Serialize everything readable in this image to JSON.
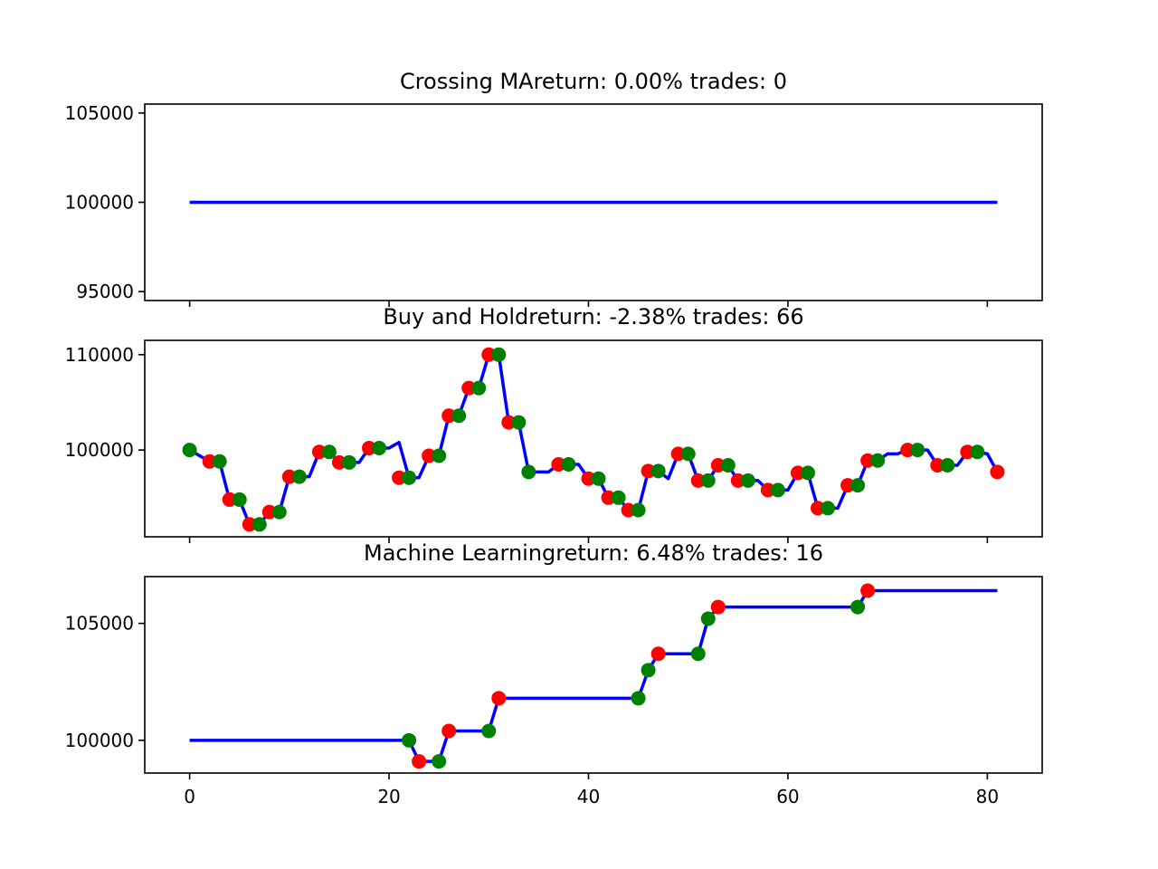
{
  "chart_data": [
    {
      "type": "line",
      "title": "Crossing MAreturn: 0.00% trades: 0",
      "ylim": [
        94500,
        105500
      ],
      "yticks": [
        95000,
        100000,
        105000
      ],
      "ytick_labels": [
        "95000",
        "100000",
        "105000"
      ],
      "xlim": [
        -4.5,
        85.5
      ],
      "x_tick_labels_shown": false,
      "series": [
        {
          "line_color": "#0000ff",
          "x": [
            0,
            81
          ],
          "y": [
            100000,
            100000
          ]
        }
      ],
      "markers": []
    },
    {
      "type": "line",
      "title": "Buy and Holdreturn: -2.38% trades: 66",
      "ylim": [
        90900,
        111500
      ],
      "yticks": [
        100000,
        110000
      ],
      "ytick_labels": [
        "100000",
        "110000"
      ],
      "xlim": [
        -4.5,
        85.5
      ],
      "x_tick_labels_shown": false,
      "series": [
        {
          "line_color": "#0000ff",
          "x": [
            0,
            2,
            3,
            4,
            5,
            6,
            7,
            8,
            9,
            10,
            11,
            12,
            13,
            14,
            15,
            16,
            17,
            18,
            19,
            20,
            21,
            22,
            23,
            24,
            25,
            26,
            27,
            28,
            29,
            30,
            31,
            32,
            33,
            34,
            35,
            36,
            37,
            38,
            39,
            40,
            41,
            42,
            43,
            44,
            45,
            46,
            47,
            48,
            49,
            50,
            51,
            52,
            53,
            54,
            55,
            56,
            57,
            58,
            59,
            60,
            61,
            62,
            63,
            64,
            65,
            66,
            67,
            68,
            69,
            70,
            71,
            72,
            73,
            74,
            75,
            76,
            77,
            78,
            79,
            80,
            81
          ],
          "y": [
            100000,
            98800,
            98800,
            94800,
            94800,
            92200,
            92200,
            93500,
            93500,
            97200,
            97200,
            97200,
            99800,
            99800,
            98700,
            98700,
            98700,
            100200,
            100200,
            100200,
            100800,
            97100,
            97100,
            99400,
            99400,
            103600,
            103600,
            106500,
            106500,
            110000,
            110000,
            102900,
            102900,
            97700,
            97700,
            97700,
            98500,
            98500,
            98500,
            97000,
            97000,
            95000,
            95000,
            93700,
            93700,
            97800,
            97800,
            97000,
            99600,
            99600,
            96800,
            96800,
            98400,
            98400,
            96800,
            96800,
            96800,
            95800,
            95800,
            95800,
            97600,
            97600,
            93900,
            93900,
            93900,
            96300,
            96300,
            98900,
            98900,
            99600,
            99600,
            100000,
            100000,
            100000,
            98400,
            98400,
            98400,
            99800,
            99800,
            99600,
            97700
          ]
        }
      ],
      "markers": [
        {
          "color": "#ff0000",
          "x": [
            2,
            4,
            6,
            8,
            10,
            13,
            15,
            18,
            21,
            24,
            26,
            28,
            30,
            32,
            37,
            40,
            42,
            44,
            46,
            49,
            51,
            53,
            55,
            58,
            61,
            63,
            66,
            68,
            72,
            75,
            78,
            81
          ],
          "y": [
            98800,
            94800,
            92200,
            93500,
            97200,
            99800,
            98700,
            100200,
            97100,
            99400,
            103600,
            106500,
            110000,
            102900,
            98500,
            97000,
            95000,
            93700,
            97800,
            99600,
            96800,
            98400,
            96800,
            95800,
            97600,
            93900,
            96300,
            98900,
            100000,
            98400,
            99800,
            97700
          ]
        },
        {
          "color": "#008000",
          "x": [
            0,
            3,
            5,
            7,
            9,
            11,
            14,
            16,
            19,
            22,
            25,
            27,
            29,
            31,
            33,
            34,
            38,
            41,
            43,
            45,
            47,
            50,
            52,
            54,
            56,
            59,
            62,
            64,
            67,
            69,
            73,
            76,
            79
          ],
          "y": [
            100000,
            98800,
            94800,
            92200,
            93500,
            97200,
            99800,
            98700,
            100200,
            97100,
            99400,
            103600,
            106500,
            110000,
            102900,
            97700,
            98500,
            97000,
            95000,
            93700,
            97800,
            99600,
            96800,
            98400,
            96800,
            95800,
            97600,
            93900,
            96300,
            98900,
            100000,
            98400,
            99800
          ]
        }
      ]
    },
    {
      "type": "line",
      "title": "Machine Learningreturn: 6.48% trades: 16",
      "ylim": [
        98600,
        107000
      ],
      "yticks": [
        100000,
        105000
      ],
      "ytick_labels": [
        "100000",
        "105000"
      ],
      "xlim": [
        -4.5,
        85.5
      ],
      "xticks": [
        0,
        20,
        40,
        60,
        80
      ],
      "xtick_labels": [
        "0",
        "20",
        "40",
        "60",
        "80"
      ],
      "x_tick_labels_shown": true,
      "series": [
        {
          "line_color": "#0000ff",
          "x": [
            0,
            22,
            23,
            24,
            25,
            26,
            27,
            28,
            29,
            30,
            31,
            32,
            33,
            34,
            35,
            36,
            37,
            38,
            39,
            40,
            41,
            42,
            43,
            44,
            45,
            46,
            47,
            48,
            49,
            50,
            51,
            52,
            53,
            54,
            55,
            56,
            57,
            58,
            59,
            60,
            61,
            62,
            63,
            64,
            65,
            66,
            67,
            68,
            81
          ],
          "y": [
            100000,
            100000,
            99100,
            99100,
            99100,
            100400,
            100400,
            100400,
            100400,
            100400,
            101800,
            101800,
            101800,
            101800,
            101800,
            101800,
            101800,
            101800,
            101800,
            101800,
            101800,
            101800,
            101800,
            101800,
            101800,
            103000,
            103700,
            103700,
            103700,
            103700,
            103700,
            105200,
            105700,
            105700,
            105700,
            105700,
            105700,
            105700,
            105700,
            105700,
            105700,
            105700,
            105700,
            105700,
            105700,
            105700,
            105700,
            106400,
            106400
          ]
        }
      ],
      "markers": [
        {
          "color": "#ff0000",
          "x": [
            23,
            26,
            31,
            47,
            53,
            68
          ],
          "y": [
            99100,
            100400,
            101800,
            103700,
            105700,
            106400
          ]
        },
        {
          "color": "#008000",
          "x": [
            22,
            25,
            30,
            45,
            46,
            51,
            52,
            67
          ],
          "y": [
            100000,
            99100,
            100400,
            101800,
            103000,
            103700,
            105200,
            105700
          ]
        }
      ]
    }
  ]
}
